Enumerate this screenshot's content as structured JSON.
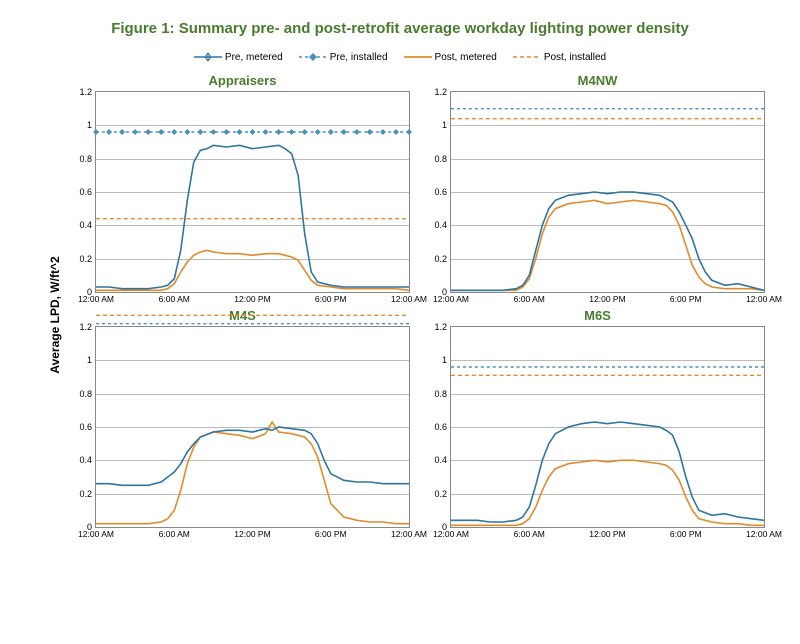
{
  "title": "Figure 1: Summary pre- and post-retrofit average workday lighting power density",
  "ylabel": "Average LPD, W/ft^2",
  "legend": {
    "items": [
      {
        "label": "Pre, metered",
        "style": "pre_metered"
      },
      {
        "label": "Pre, installed",
        "style": "pre_installed"
      },
      {
        "label": "Post, metered",
        "style": "post_metered"
      },
      {
        "label": "Post, installed",
        "style": "post_installed"
      }
    ]
  },
  "series_styles": {
    "pre_metered": {
      "color": "#2e75a0",
      "width": 1.6,
      "dash": "",
      "marker": "star"
    },
    "pre_installed": {
      "color": "#4a90b8",
      "width": 1.4,
      "dash": "3,3",
      "marker": "diamond"
    },
    "post_metered": {
      "color": "#e08b2c",
      "width": 1.6,
      "dash": "",
      "marker": ""
    },
    "post_installed": {
      "color": "#e08b2c",
      "width": 1.4,
      "dash": "4,3",
      "marker": ""
    }
  },
  "xaxis": {
    "min": 0,
    "max": 24,
    "ticks": [
      0,
      6,
      12,
      18,
      24
    ],
    "labels": [
      "12:00 AM",
      "6:00 AM",
      "12:00 PM",
      "6:00 PM",
      "12:00 AM"
    ]
  },
  "panels": [
    {
      "title": "Appraisers",
      "ymin": 0,
      "ymax": 1.2,
      "ystep": 0.2,
      "pre_installed": 0.96,
      "post_installed": 0.44,
      "pre_installed_markers": true,
      "x": [
        0,
        1,
        2,
        3,
        4,
        5,
        5.5,
        6,
        6.5,
        7,
        7.5,
        8,
        8.5,
        9,
        10,
        11,
        12,
        13,
        14,
        14.5,
        15,
        15.5,
        16,
        16.5,
        17,
        18,
        19,
        20,
        21,
        22,
        23,
        24
      ],
      "pre_metered": [
        0.03,
        0.03,
        0.02,
        0.02,
        0.02,
        0.03,
        0.04,
        0.08,
        0.25,
        0.55,
        0.78,
        0.85,
        0.86,
        0.88,
        0.87,
        0.88,
        0.86,
        0.87,
        0.88,
        0.86,
        0.83,
        0.7,
        0.35,
        0.12,
        0.06,
        0.04,
        0.03,
        0.03,
        0.03,
        0.03,
        0.03,
        0.03
      ],
      "post_metered": [
        0.01,
        0.01,
        0.01,
        0.01,
        0.01,
        0.01,
        0.02,
        0.05,
        0.12,
        0.18,
        0.22,
        0.24,
        0.25,
        0.24,
        0.23,
        0.23,
        0.22,
        0.23,
        0.23,
        0.22,
        0.21,
        0.19,
        0.13,
        0.07,
        0.04,
        0.03,
        0.02,
        0.02,
        0.02,
        0.02,
        0.02,
        0.01
      ]
    },
    {
      "title": "M4NW",
      "ymin": 0,
      "ymax": 1.2,
      "ystep": 0.2,
      "pre_installed": 1.1,
      "post_installed": 1.04,
      "pre_installed_markers": false,
      "x": [
        0,
        1,
        2,
        3,
        4,
        5,
        5.5,
        6,
        6.5,
        7,
        7.5,
        8,
        9,
        10,
        11,
        12,
        13,
        14,
        15,
        16,
        16.5,
        17,
        17.5,
        18,
        18.5,
        19,
        19.5,
        20,
        21,
        22,
        23,
        24
      ],
      "pre_metered": [
        0.01,
        0.01,
        0.01,
        0.01,
        0.01,
        0.02,
        0.04,
        0.1,
        0.25,
        0.4,
        0.5,
        0.55,
        0.58,
        0.59,
        0.6,
        0.59,
        0.6,
        0.6,
        0.59,
        0.58,
        0.56,
        0.54,
        0.48,
        0.4,
        0.32,
        0.2,
        0.12,
        0.07,
        0.04,
        0.05,
        0.03,
        0.01
      ],
      "post_metered": [
        0.01,
        0.01,
        0.01,
        0.01,
        0.01,
        0.01,
        0.03,
        0.08,
        0.2,
        0.35,
        0.45,
        0.5,
        0.53,
        0.54,
        0.55,
        0.53,
        0.54,
        0.55,
        0.54,
        0.53,
        0.52,
        0.48,
        0.4,
        0.28,
        0.16,
        0.09,
        0.05,
        0.03,
        0.02,
        0.02,
        0.02,
        0.01
      ]
    },
    {
      "title": "M4S",
      "ymin": 0,
      "ymax": 1.2,
      "ystep": 0.2,
      "pre_installed": 1.22,
      "post_installed": 1.27,
      "pre_installed_markers": false,
      "x": [
        0,
        1,
        2,
        3,
        4,
        5,
        5.5,
        6,
        6.5,
        7,
        7.5,
        8,
        9,
        10,
        11,
        12,
        13,
        13.5,
        14,
        15,
        16,
        16.5,
        17,
        17.5,
        18,
        19,
        20,
        21,
        22,
        23,
        24
      ],
      "pre_metered": [
        0.26,
        0.26,
        0.25,
        0.25,
        0.25,
        0.27,
        0.3,
        0.33,
        0.38,
        0.45,
        0.5,
        0.54,
        0.57,
        0.58,
        0.58,
        0.57,
        0.59,
        0.58,
        0.6,
        0.59,
        0.58,
        0.56,
        0.5,
        0.4,
        0.32,
        0.28,
        0.27,
        0.27,
        0.26,
        0.26,
        0.26
      ],
      "post_metered": [
        0.02,
        0.02,
        0.02,
        0.02,
        0.02,
        0.03,
        0.05,
        0.1,
        0.22,
        0.38,
        0.48,
        0.54,
        0.57,
        0.56,
        0.55,
        0.53,
        0.56,
        0.63,
        0.57,
        0.56,
        0.54,
        0.5,
        0.42,
        0.28,
        0.14,
        0.06,
        0.04,
        0.03,
        0.03,
        0.02,
        0.02
      ]
    },
    {
      "title": "M6S",
      "ymin": 0,
      "ymax": 1.2,
      "ystep": 0.2,
      "pre_installed": 0.96,
      "post_installed": 0.91,
      "pre_installed_markers": false,
      "x": [
        0,
        1,
        2,
        3,
        4,
        5,
        5.5,
        6,
        6.5,
        7,
        7.5,
        8,
        9,
        10,
        11,
        12,
        13,
        14,
        15,
        16,
        16.5,
        17,
        17.5,
        18,
        18.5,
        19,
        20,
        21,
        22,
        23,
        24
      ],
      "pre_metered": [
        0.04,
        0.04,
        0.04,
        0.03,
        0.03,
        0.04,
        0.06,
        0.12,
        0.25,
        0.4,
        0.5,
        0.56,
        0.6,
        0.62,
        0.63,
        0.62,
        0.63,
        0.62,
        0.61,
        0.6,
        0.58,
        0.55,
        0.45,
        0.3,
        0.18,
        0.1,
        0.07,
        0.08,
        0.06,
        0.05,
        0.04
      ],
      "post_metered": [
        0.01,
        0.01,
        0.01,
        0.01,
        0.01,
        0.01,
        0.02,
        0.05,
        0.12,
        0.22,
        0.3,
        0.35,
        0.38,
        0.39,
        0.4,
        0.39,
        0.4,
        0.4,
        0.39,
        0.38,
        0.37,
        0.34,
        0.28,
        0.18,
        0.1,
        0.05,
        0.03,
        0.02,
        0.02,
        0.01,
        0.01
      ]
    }
  ],
  "colors": {
    "title": "#4a7c2e",
    "grid": "#bbbbbb",
    "background": "#ffffff"
  },
  "fontsize": {
    "title": 15,
    "panel_title": 13,
    "ticks": 9,
    "legend": 10
  }
}
